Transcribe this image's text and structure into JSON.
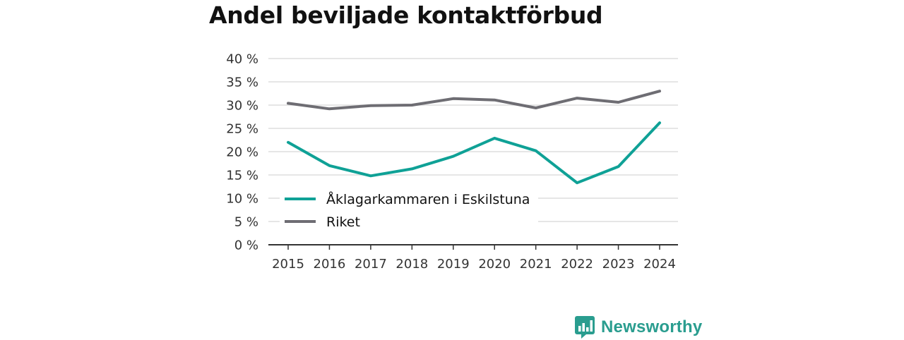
{
  "colors": {
    "eskilstuna": "#0fa196",
    "riket": "#6e6d73",
    "grid": "#dddddd",
    "axis": "#333333",
    "brand": "#2a9d8f"
  },
  "brand": {
    "name": "Newsworthy",
    "icon": "newsworthy-chart-bubble-icon"
  },
  "chart_data": {
    "type": "line",
    "title": "Andel beviljade kontaktförbud",
    "xlabel": "",
    "ylabel": "",
    "x": [
      2015,
      2016,
      2017,
      2018,
      2019,
      2020,
      2021,
      2022,
      2023,
      2024
    ],
    "ylim": [
      0,
      40
    ],
    "yticks": [
      0,
      5,
      10,
      15,
      20,
      25,
      30,
      35,
      40
    ],
    "ytick_labels": [
      "0 %",
      "5 %",
      "10 %",
      "15 %",
      "20 %",
      "25 %",
      "30 %",
      "35 %",
      "40 %"
    ],
    "grid": true,
    "legend_position": "bottom-left",
    "series": [
      {
        "name": "Åklagarkammaren i Eskilstuna",
        "color": "#0fa196",
        "values": [
          22.0,
          17.0,
          14.8,
          16.3,
          19.0,
          22.9,
          20.2,
          13.3,
          16.8,
          26.2
        ]
      },
      {
        "name": "Riket",
        "color": "#6e6d73",
        "values": [
          30.4,
          29.2,
          29.9,
          30.0,
          31.4,
          31.1,
          29.4,
          31.5,
          30.6,
          33.0
        ]
      }
    ]
  }
}
